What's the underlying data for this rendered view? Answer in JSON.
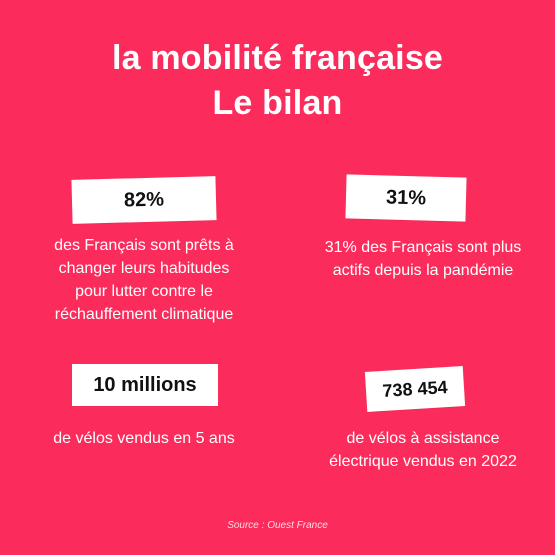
{
  "title": {
    "line1": "la mobilité française",
    "line2": "Le bilan"
  },
  "stats": [
    {
      "value": "82%",
      "lines": [
        "des Français sont prêts à",
        "changer leurs habitudes",
        "pour lutter contre le",
        "réchauffement climatique"
      ]
    },
    {
      "value": "31%",
      "lines": [
        "31% des Français sont plus",
        "actifs depuis la pandémie"
      ]
    },
    {
      "value": "10 millions",
      "lines": [
        "de vélos vendus en 5 ans"
      ]
    },
    {
      "value": "738 454",
      "lines": [
        "de vélos à assistance",
        "électrique vendus en 2022"
      ]
    }
  ],
  "source": "Source : Ouest France",
  "colors": {
    "background": "#fb2c5c",
    "box": "#ffffff",
    "text": "#ffffff"
  }
}
